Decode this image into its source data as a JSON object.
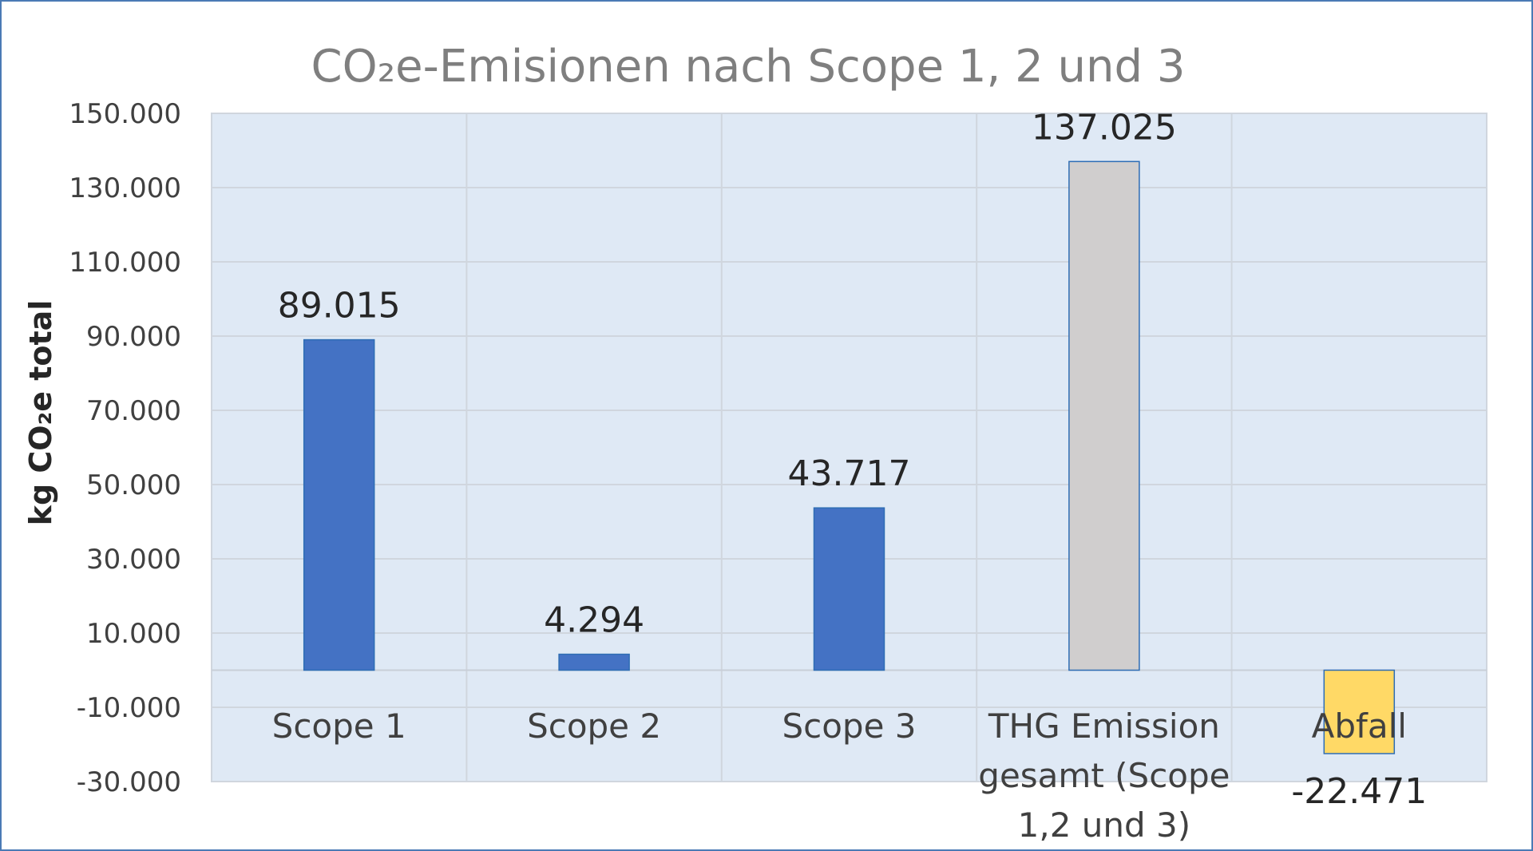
{
  "chart_data": {
    "type": "bar",
    "title": "CO₂e-Emisionen nach Scope 1, 2 und 3",
    "ylabel": "kg CO₂e total",
    "xlabel": "",
    "categories": [
      "Scope 1",
      "Scope 2",
      "Scope 3",
      "THG Emission gesamt (Scope 1,2 und 3)",
      "Abfall"
    ],
    "category_lines": [
      [
        "Scope 1"
      ],
      [
        "Scope 2"
      ],
      [
        "Scope 3"
      ],
      [
        "THG Emission",
        "gesamt (Scope",
        "1,2 und 3)"
      ],
      [
        "Abfall"
      ]
    ],
    "values": [
      89015,
      4294,
      43717,
      137025,
      -22471
    ],
    "data_labels": [
      "89.015",
      "4.294",
      "43.717",
      "137.025",
      "-22.471"
    ],
    "bar_colors": [
      "#4472c4",
      "#4472c4",
      "#4472c4",
      "#d0cece",
      "#ffd966"
    ],
    "ylim": [
      -30000,
      150000
    ],
    "yticks": [
      -30000,
      -10000,
      10000,
      30000,
      50000,
      70000,
      90000,
      110000,
      130000,
      150000
    ],
    "ytick_labels": [
      "-30.000",
      "-10.000",
      "10.000",
      "30.000",
      "50.000",
      "70.000",
      "90.000",
      "110.000",
      "130.000",
      "150.000"
    ],
    "grid": true,
    "legend": "none",
    "plot_background": "#dfe9f5",
    "gridline_color": "#d0d6de"
  }
}
